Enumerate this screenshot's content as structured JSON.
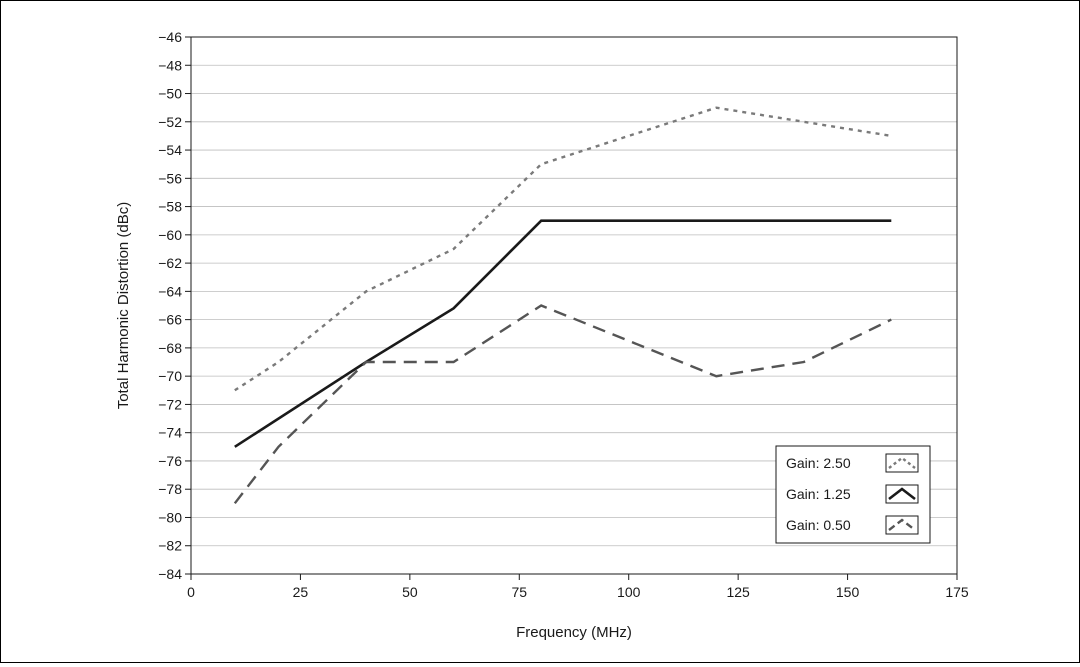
{
  "chart_data": {
    "type": "line",
    "xlabel": "Frequency (MHz)",
    "ylabel": "Total Harmonic Distortion (dBc)",
    "xlim": [
      0,
      175
    ],
    "ylim": [
      -84,
      -46
    ],
    "xticks": [
      0,
      25,
      50,
      75,
      100,
      125,
      150,
      175
    ],
    "yticks": [
      -46,
      -48,
      -50,
      -52,
      -54,
      -56,
      -58,
      -60,
      -62,
      -64,
      -66,
      -68,
      -70,
      -72,
      -74,
      -76,
      -78,
      -80,
      -82,
      -84
    ],
    "grid": true,
    "legend_position": "lower-right",
    "series": [
      {
        "name": "Gain: 2.50",
        "style": "dotted",
        "color": "#7a7a7a",
        "points": [
          [
            10,
            -71
          ],
          [
            20,
            -69
          ],
          [
            40,
            -64
          ],
          [
            60,
            -61
          ],
          [
            80,
            -55
          ],
          [
            100,
            -53
          ],
          [
            120,
            -51
          ],
          [
            140,
            -52
          ],
          [
            160,
            -53
          ]
        ]
      },
      {
        "name": "Gain: 1.25",
        "style": "solid",
        "color": "#1a1a1a",
        "points": [
          [
            10,
            -75
          ],
          [
            40,
            -69
          ],
          [
            60,
            -65.2
          ],
          [
            80,
            -59
          ],
          [
            160,
            -59
          ]
        ]
      },
      {
        "name": "Gain: 0.50",
        "style": "dashed",
        "color": "#555555",
        "points": [
          [
            10,
            -79
          ],
          [
            20,
            -75
          ],
          [
            40,
            -69
          ],
          [
            60,
            -69
          ],
          [
            80,
            -65
          ],
          [
            120,
            -70
          ],
          [
            140,
            -69
          ],
          [
            160,
            -66
          ]
        ]
      }
    ]
  }
}
